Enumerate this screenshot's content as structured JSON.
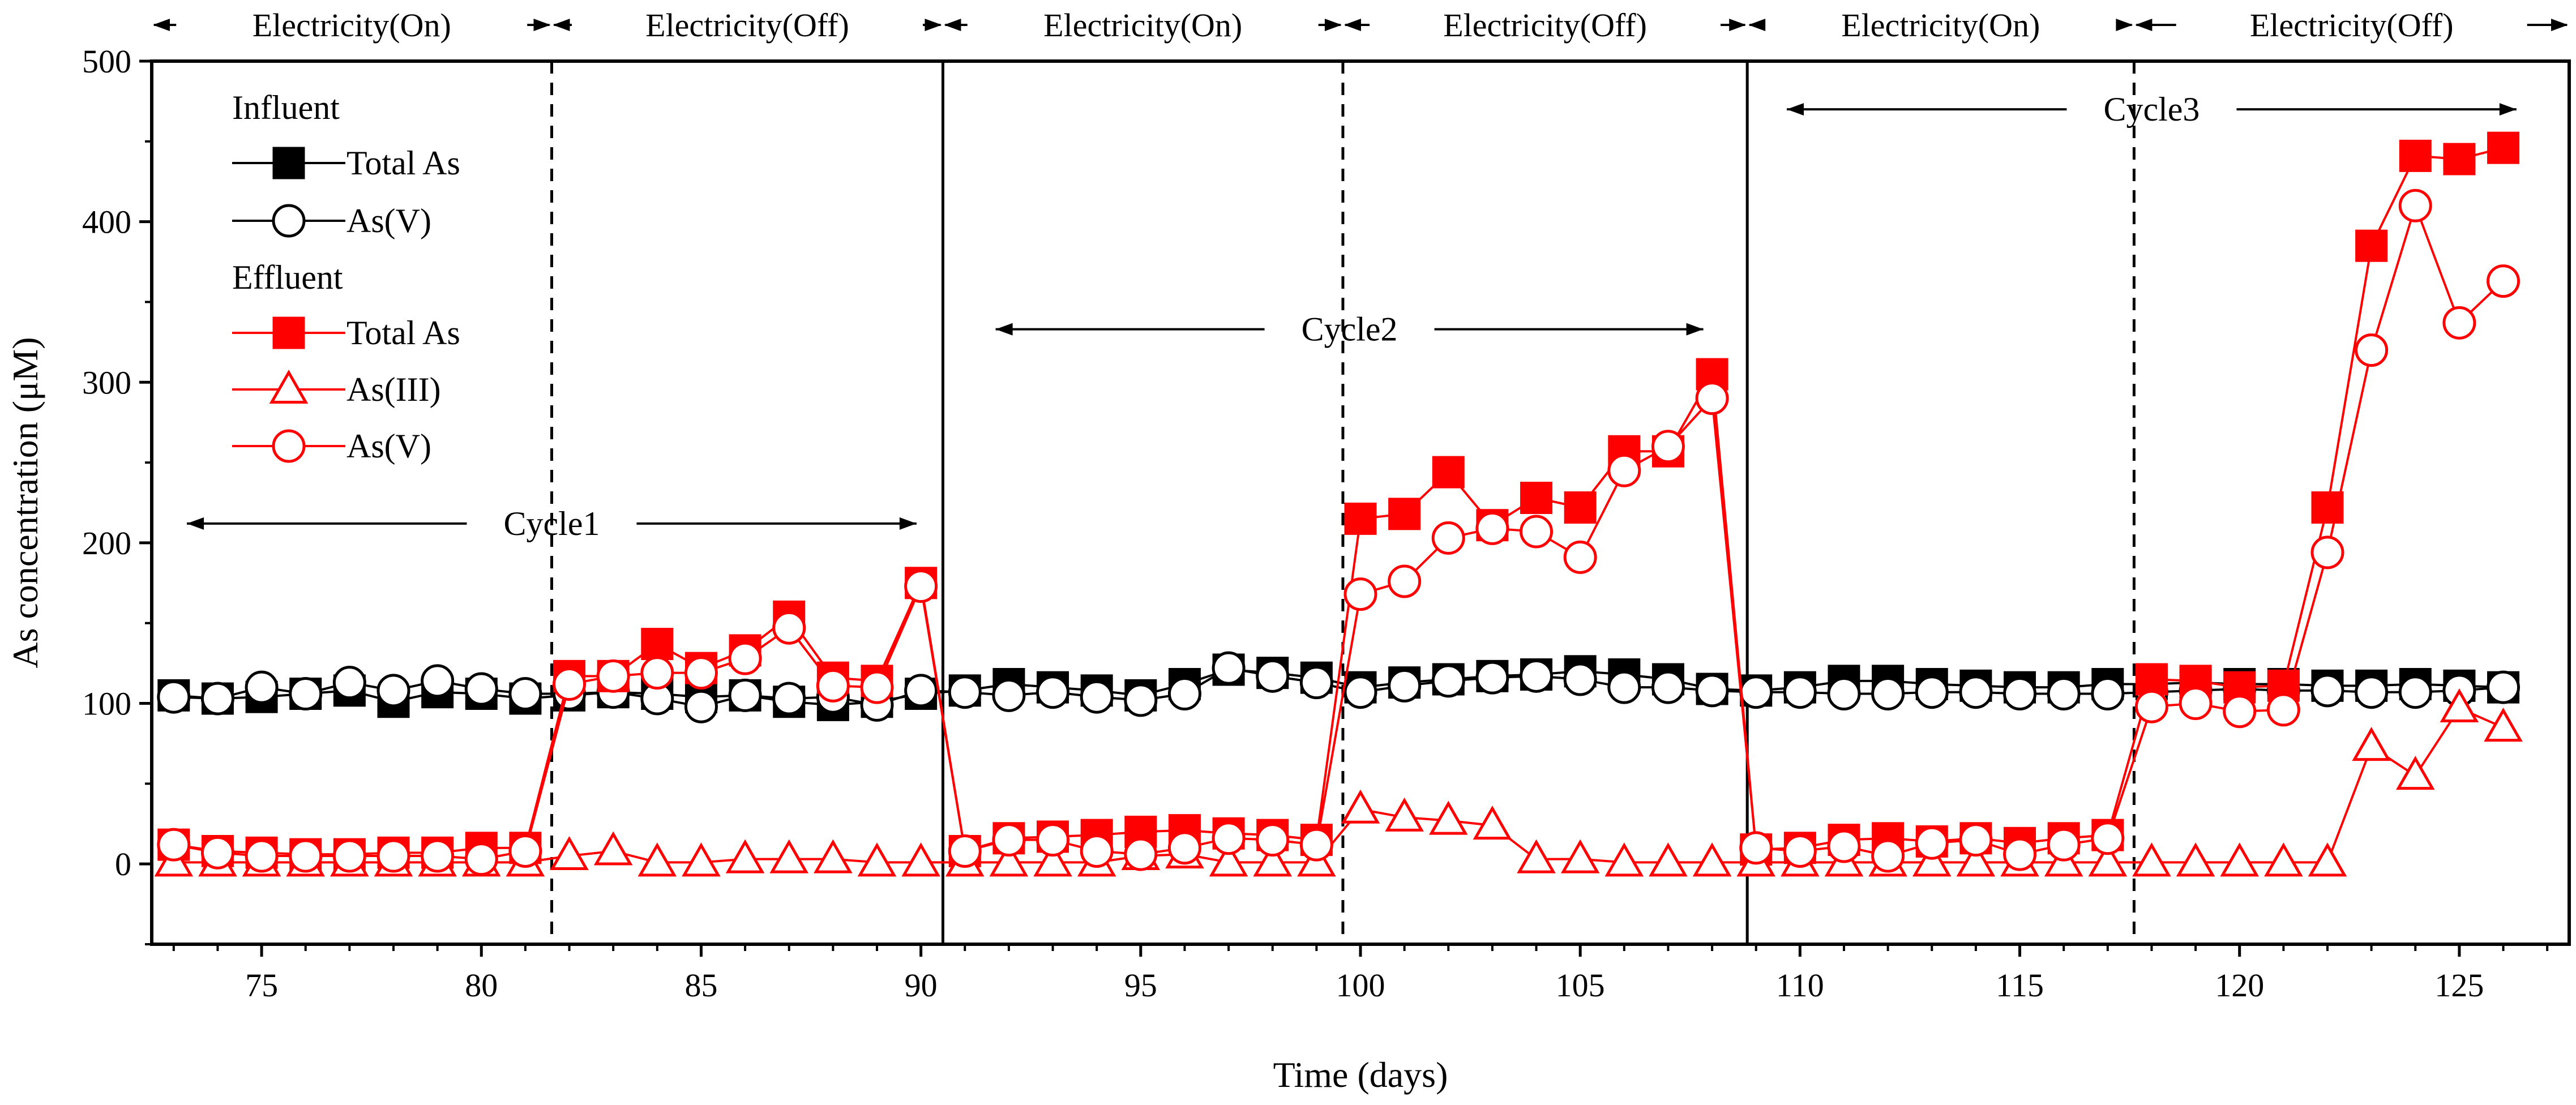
{
  "chart_data": {
    "type": "line",
    "xlabel": "Time (days)",
    "ylabel": "As concentration (μM)",
    "xlim": [
      72.5,
      127.5
    ],
    "ylim": [
      -50,
      500
    ],
    "x_ticks": [
      75,
      80,
      85,
      90,
      95,
      100,
      105,
      110,
      115,
      120,
      125
    ],
    "y_ticks": [
      0,
      100,
      200,
      300,
      400,
      500
    ],
    "legend": {
      "influent_heading": "Influent",
      "effluent_heading": "Effluent"
    },
    "phases": [
      {
        "label": "Electricity(On)",
        "start": 72.5,
        "end": 81.6
      },
      {
        "label": "Electricity(Off)",
        "start": 81.6,
        "end": 90.5
      },
      {
        "label": "Electricity(On)",
        "start": 90.5,
        "end": 99.6
      },
      {
        "label": "Electricity(Off)",
        "start": 99.6,
        "end": 108.8
      },
      {
        "label": "Electricity(On)",
        "start": 108.8,
        "end": 117.6
      },
      {
        "label": "Electricity(Off)",
        "start": 117.6,
        "end": 127.5
      }
    ],
    "solid_dividers": [
      90.5,
      108.8
    ],
    "dashed_dividers": [
      81.6,
      99.6,
      117.6
    ],
    "cycles": [
      {
        "label": "Cycle1",
        "start": 73.3,
        "end": 89.9,
        "y": 212
      },
      {
        "label": "Cycle2",
        "start": 91.7,
        "end": 107.8,
        "y": 333
      },
      {
        "label": "Cycle3",
        "start": 109.7,
        "end": 126.3,
        "y": 470
      }
    ],
    "series": [
      {
        "name": "Total As",
        "group": "Influent",
        "marker": "square",
        "filled": true,
        "color": "#000000",
        "x": [
          73,
          74,
          75,
          76,
          77,
          78,
          79,
          80,
          81,
          82,
          83,
          84,
          85,
          86,
          87,
          88,
          89,
          90,
          91,
          92,
          93,
          94,
          95,
          96,
          97,
          98,
          99,
          100,
          101,
          102,
          103,
          104,
          105,
          106,
          107,
          108,
          109,
          110,
          111,
          112,
          113,
          114,
          115,
          116,
          117,
          118,
          119,
          120,
          121,
          122,
          123,
          124,
          125,
          126
        ],
        "values": [
          105,
          103,
          104,
          106,
          108,
          101,
          107,
          106,
          103,
          105,
          107,
          106,
          104,
          105,
          101,
          99,
          101,
          106,
          108,
          112,
          110,
          108,
          105,
          112,
          121,
          119,
          116,
          110,
          113,
          115,
          117,
          118,
          120,
          118,
          115,
          109,
          108,
          110,
          114,
          114,
          112,
          111,
          110,
          110,
          112,
          112,
          113,
          112,
          112,
          111,
          111,
          112,
          111,
          110
        ]
      },
      {
        "name": "As(V)",
        "group": "Influent",
        "marker": "circle",
        "filled": false,
        "color": "#000000",
        "x": [
          73,
          74,
          75,
          76,
          77,
          78,
          79,
          80,
          81,
          82,
          83,
          84,
          85,
          86,
          87,
          88,
          89,
          90,
          91,
          92,
          93,
          94,
          95,
          96,
          97,
          98,
          99,
          100,
          101,
          102,
          103,
          104,
          105,
          106,
          107,
          108,
          109,
          110,
          111,
          112,
          113,
          114,
          115,
          116,
          117,
          118,
          119,
          120,
          121,
          122,
          123,
          124,
          125,
          126
        ],
        "values": [
          104,
          103,
          110,
          106,
          113,
          108,
          114,
          109,
          106,
          106,
          107,
          103,
          98,
          105,
          103,
          104,
          99,
          108,
          107,
          105,
          107,
          104,
          102,
          106,
          122,
          117,
          113,
          107,
          111,
          114,
          116,
          117,
          115,
          110,
          110,
          108,
          107,
          107,
          106,
          106,
          107,
          107,
          106,
          106,
          106,
          107,
          108,
          109,
          108,
          108,
          107,
          107,
          108,
          110
        ]
      },
      {
        "name": "Total As",
        "group": "Effluent",
        "marker": "square",
        "filled": true,
        "color": "#ff0000",
        "x": [
          73,
          74,
          75,
          76,
          77,
          78,
          79,
          80,
          81,
          82,
          83,
          84,
          85,
          86,
          87,
          88,
          89,
          90,
          91,
          92,
          93,
          94,
          95,
          96,
          97,
          98,
          99,
          100,
          101,
          102,
          103,
          104,
          105,
          106,
          107,
          108,
          109,
          110,
          111,
          112,
          113,
          114,
          115,
          116,
          117,
          118,
          119,
          120,
          121,
          122,
          123,
          124,
          125,
          126
        ],
        "values": [
          12,
          8,
          7,
          6,
          6,
          7,
          7,
          10,
          10,
          117,
          117,
          137,
          122,
          133,
          154,
          116,
          114,
          175,
          8,
          16,
          17,
          18,
          20,
          21,
          19,
          18,
          15,
          215,
          218,
          244,
          211,
          228,
          222,
          257,
          257,
          305,
          9,
          10,
          15,
          16,
          14,
          16,
          13,
          16,
          18,
          115,
          114,
          110,
          111,
          222,
          385,
          441,
          439,
          446
        ]
      },
      {
        "name": "As(III)",
        "group": "Effluent",
        "marker": "triangle",
        "filled": false,
        "color": "#ff0000",
        "x": [
          73,
          74,
          75,
          76,
          77,
          78,
          79,
          80,
          81,
          82,
          83,
          84,
          85,
          86,
          87,
          88,
          89,
          90,
          91,
          92,
          93,
          94,
          95,
          96,
          97,
          98,
          99,
          100,
          101,
          102,
          103,
          104,
          105,
          106,
          107,
          108,
          109,
          110,
          111,
          112,
          113,
          114,
          115,
          116,
          117,
          118,
          119,
          120,
          121,
          122,
          123,
          124,
          125,
          126
        ],
        "values": [
          1,
          1,
          1,
          1,
          1,
          1,
          1,
          1,
          1,
          5,
          8,
          1,
          1,
          3,
          3,
          3,
          1,
          1,
          1,
          1,
          1,
          1,
          5,
          6,
          1,
          1,
          1,
          34,
          29,
          27,
          24,
          3,
          3,
          1,
          1,
          1,
          1,
          1,
          1,
          1,
          1,
          1,
          1,
          1,
          1,
          1,
          1,
          1,
          1,
          1,
          73,
          55,
          97,
          85
        ]
      },
      {
        "name": "As(V)",
        "group": "Effluent",
        "marker": "circle",
        "filled": false,
        "color": "#ff0000",
        "x": [
          73,
          74,
          75,
          76,
          77,
          78,
          79,
          80,
          81,
          82,
          83,
          84,
          85,
          86,
          87,
          88,
          89,
          90,
          91,
          92,
          93,
          94,
          95,
          96,
          97,
          98,
          99,
          100,
          101,
          102,
          103,
          104,
          105,
          106,
          107,
          108,
          109,
          110,
          111,
          112,
          113,
          114,
          115,
          116,
          117,
          118,
          119,
          120,
          121,
          122,
          123,
          124,
          125,
          126
        ],
        "values": [
          12,
          7,
          5,
          5,
          5,
          5,
          5,
          3,
          8,
          112,
          117,
          119,
          119,
          128,
          147,
          111,
          110,
          173,
          8,
          15,
          15,
          8,
          6,
          10,
          16,
          15,
          12,
          168,
          176,
          203,
          209,
          207,
          191,
          245,
          260,
          290,
          10,
          8,
          11,
          5,
          13,
          15,
          6,
          12,
          16,
          98,
          100,
          95,
          96,
          194,
          320,
          410,
          337,
          363
        ]
      }
    ]
  }
}
